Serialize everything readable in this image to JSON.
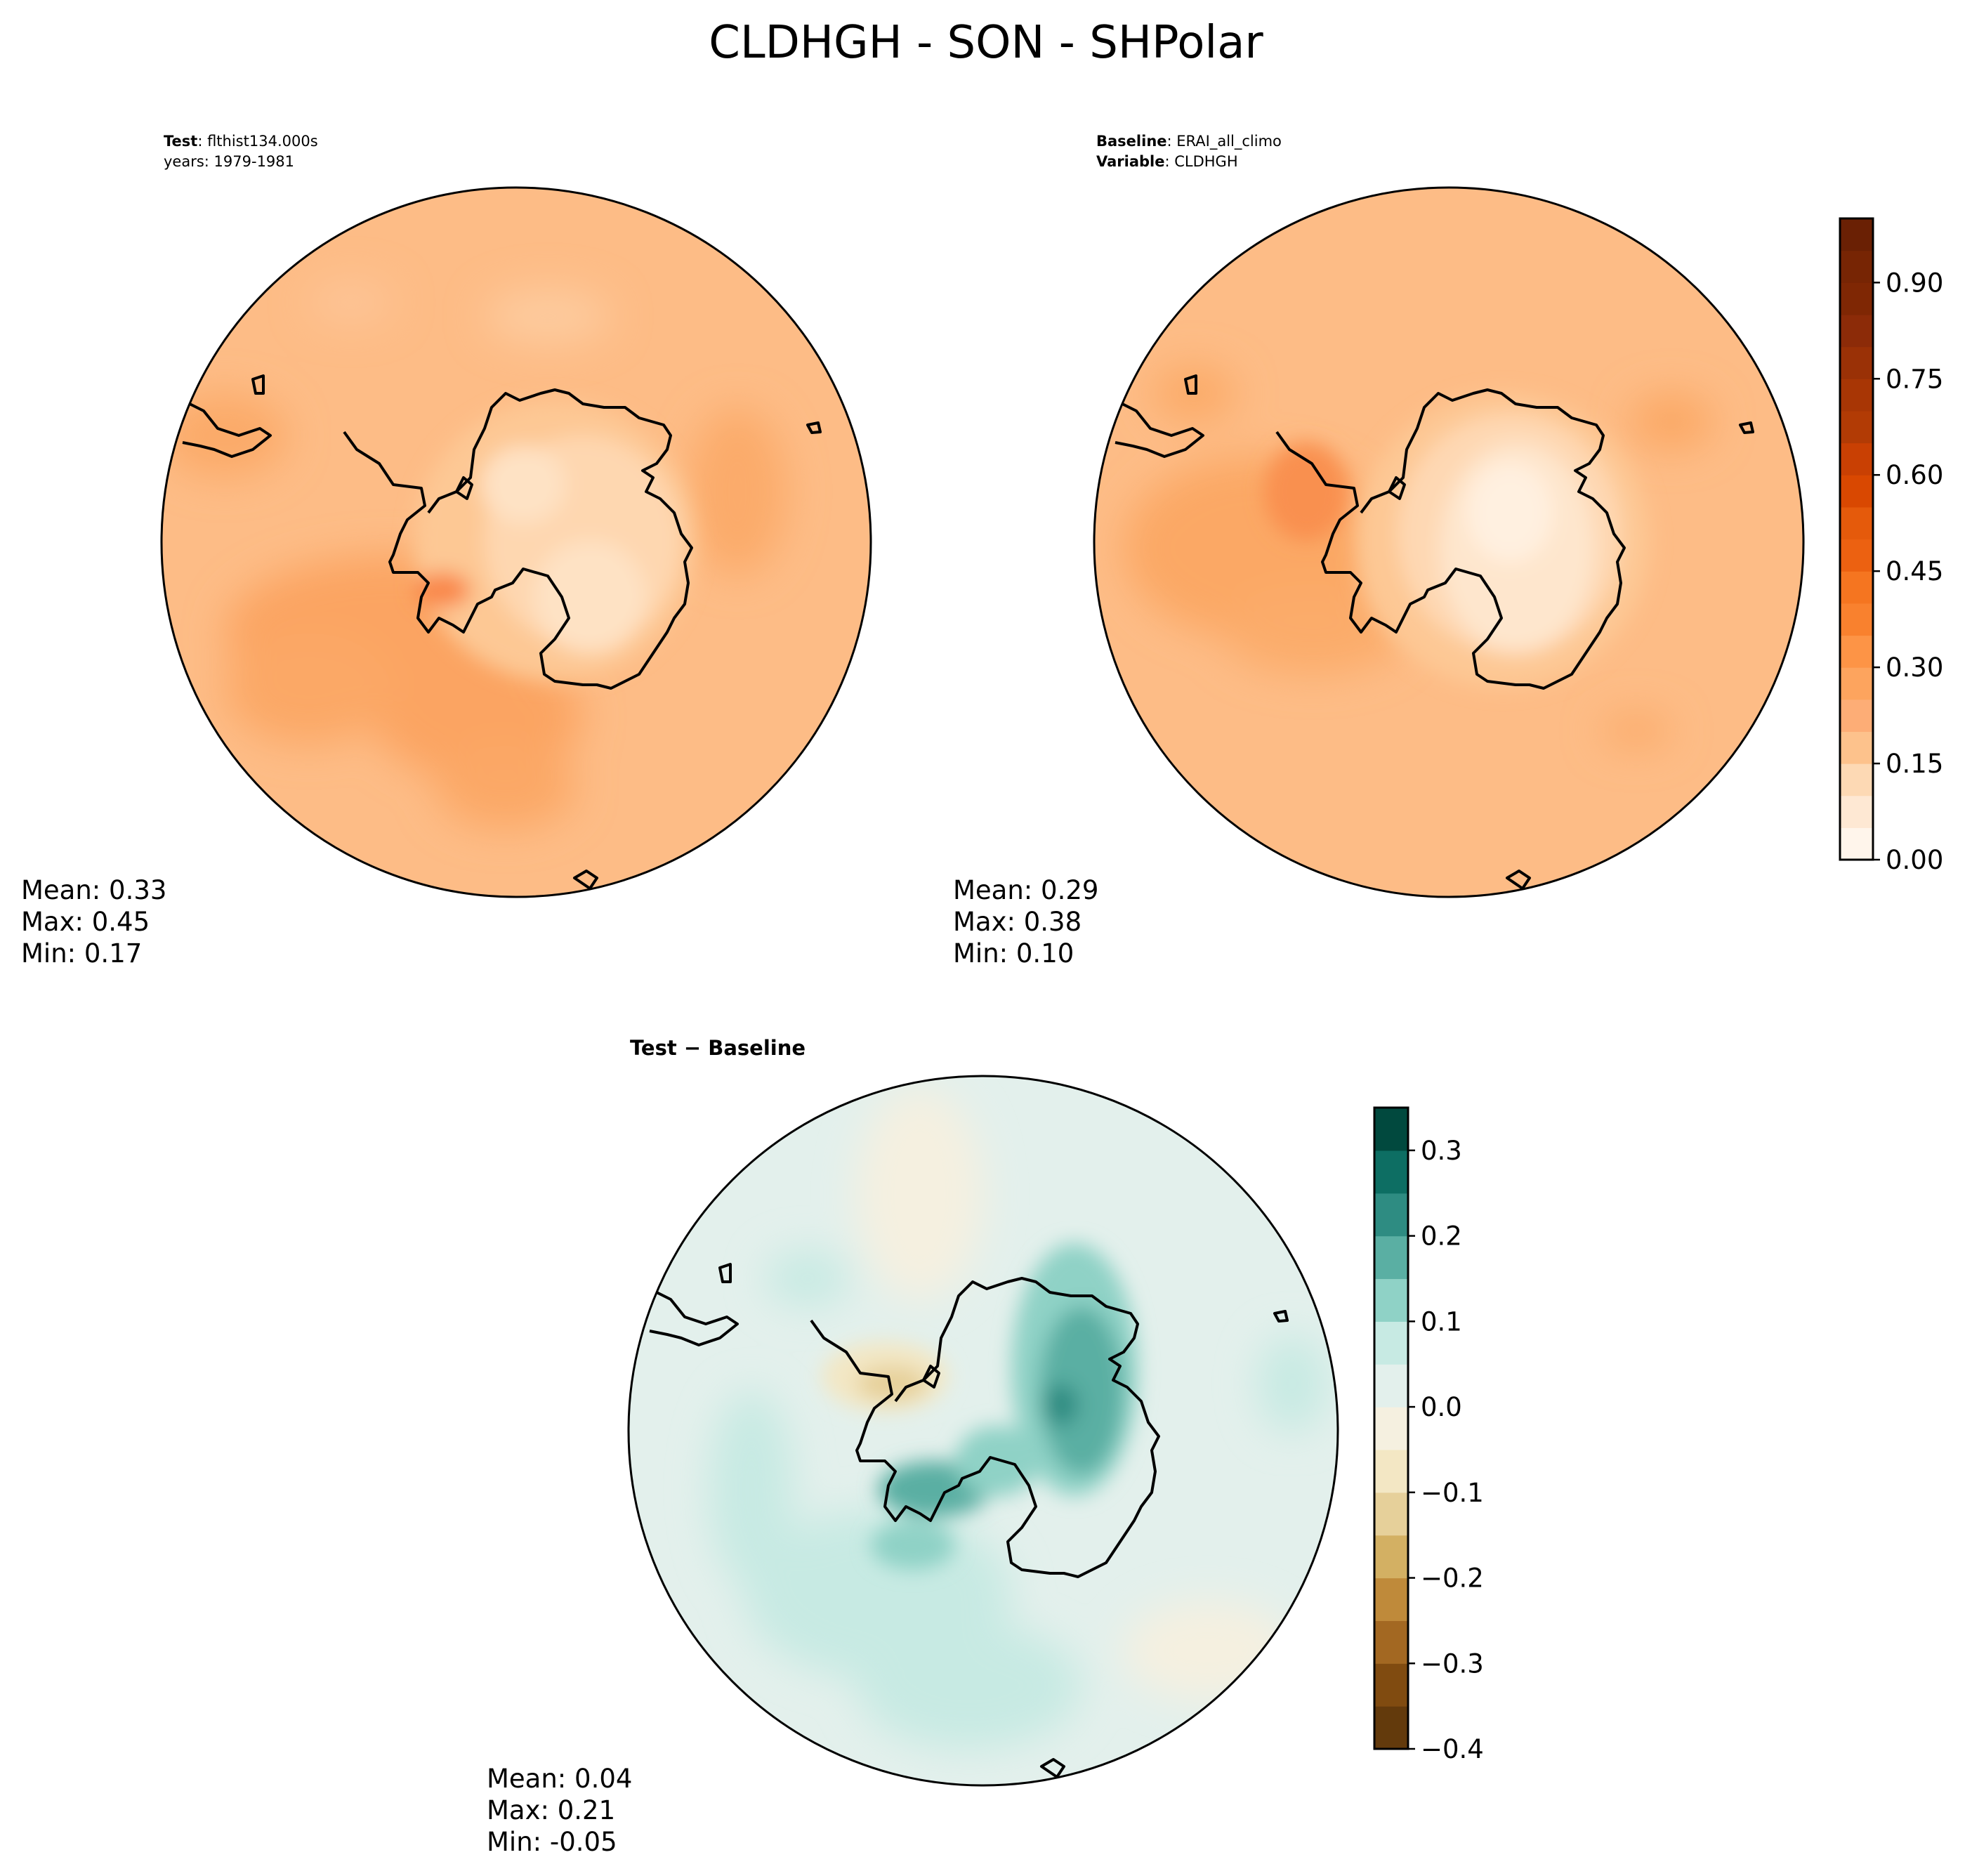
{
  "title": "CLDHGH - SON - SHPolar",
  "chart_data": [
    {
      "type": "heatmap",
      "projection": "south-polar-stereographic",
      "id": "test",
      "header_lines": [
        {
          "label": "Test",
          "value": ": flthist134.000s"
        },
        {
          "label": "",
          "value": "years: 1979-1981"
        }
      ],
      "stats": {
        "mean": "0.33",
        "max": "0.45",
        "min": "0.17"
      },
      "stat_labels": {
        "mean": "Mean:  ",
        "max": "Max:  ",
        "min": "Min:  "
      },
      "range": [
        0.17,
        0.45
      ],
      "antarctic_mean_level": 0.22,
      "ocean_mean_level": 0.35,
      "colormap": "Oranges"
    },
    {
      "type": "heatmap",
      "projection": "south-polar-stereographic",
      "id": "baseline",
      "header_lines": [
        {
          "label": "Baseline",
          "value": ": ERAI_all_climo"
        },
        {
          "label": "Variable",
          "value": ": CLDHGH"
        }
      ],
      "stats": {
        "mean": "0.29",
        "max": "0.38",
        "min": "0.10"
      },
      "stat_labels": {
        "mean": "Mean:  ",
        "max": "Max:  ",
        "min": "Min:  "
      },
      "range": [
        0.1,
        0.38
      ],
      "antarctic_mean_level": 0.12,
      "ocean_mean_level": 0.32,
      "colormap": "Oranges",
      "colorbar": {
        "levels": [
          0.0,
          0.05,
          0.1,
          0.15,
          0.2,
          0.25,
          0.3,
          0.35,
          0.4,
          0.45,
          0.5,
          0.55,
          0.6,
          0.65,
          0.7,
          0.75,
          0.8,
          0.85,
          0.9,
          0.95,
          1.0
        ],
        "colors": [
          "#fff5eb",
          "#fee8d3",
          "#fdd9b4",
          "#fdc28c",
          "#fdad76",
          "#fda45e",
          "#fd9446",
          "#f9812e",
          "#f57520",
          "#ec6111",
          "#e55a0b",
          "#d94801",
          "#c94003",
          "#b23b05",
          "#a83605",
          "#9a3106",
          "#8c2b08",
          "#7f2704",
          "#772504",
          "#6a2004"
        ],
        "ticks": [
          0.0,
          0.15,
          0.3,
          0.45,
          0.6,
          0.75,
          0.9
        ],
        "tick_labels": [
          "0.00",
          "0.15",
          "0.30",
          "0.45",
          "0.60",
          "0.75",
          "0.90"
        ]
      }
    },
    {
      "type": "heatmap",
      "projection": "south-polar-stereographic",
      "id": "difference",
      "header_lines": [
        {
          "label": "Test − Baseline",
          "value": ""
        }
      ],
      "stats": {
        "mean": "0.04",
        "max": "0.21",
        "min": "-0.05"
      },
      "stat_labels": {
        "mean": "Mean:  ",
        "max": "Max:  ",
        "min": "Min: "
      },
      "range": [
        -0.05,
        0.21
      ],
      "colormap": "BrBG",
      "colorbar": {
        "levels": [
          -0.4,
          -0.35,
          -0.3,
          -0.25,
          -0.2,
          -0.15,
          -0.1,
          -0.05,
          0.0,
          0.05,
          0.1,
          0.15,
          0.2,
          0.25,
          0.3,
          0.35
        ],
        "colors": [
          "#633a0c",
          "#804b10",
          "#a36822",
          "#bf8a3a",
          "#d3b063",
          "#e6d09a",
          "#f3e7c4",
          "#f5f0e0",
          "#e3f0ec",
          "#c7eae3",
          "#8fd2c6",
          "#5aafa3",
          "#2e8c82",
          "#0d6e63",
          "#01493e"
        ],
        "ticks": [
          -0.4,
          -0.3,
          -0.2,
          -0.1,
          0.0,
          0.1,
          0.2,
          0.3
        ],
        "tick_labels": [
          "−0.4",
          "−0.3",
          "−0.2",
          "−0.1",
          "0.0",
          "0.1",
          "0.2",
          "0.3"
        ]
      }
    }
  ]
}
